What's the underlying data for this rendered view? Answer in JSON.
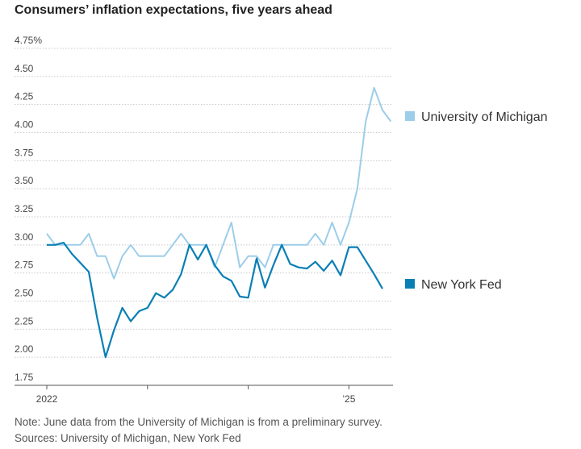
{
  "chart_data": {
    "type": "line",
    "title": "Consumers’ inflation expectations, five years ahead",
    "xlabel": "",
    "ylabel": "",
    "ylim": [
      1.75,
      4.75
    ],
    "y_ticks": [
      1.75,
      2.0,
      2.25,
      2.5,
      2.75,
      3.0,
      3.25,
      3.5,
      3.75,
      4.0,
      4.25,
      4.5,
      4.75
    ],
    "y_tick_labels": [
      "1.75",
      "2.00",
      "2.25",
      "2.50",
      "2.75",
      "3.00",
      "3.25",
      "3.50",
      "3.75",
      "4.00",
      "4.25",
      "4.50",
      "4.75%"
    ],
    "x_start": "2022-01",
    "x_ticks": [
      0,
      12,
      24,
      36
    ],
    "x_tick_labels": [
      "2022",
      "",
      "",
      "’25"
    ],
    "grid": true,
    "legend": "right, next to each line",
    "series": [
      {
        "name": "University of Michigan",
        "color": "#9dcde9",
        "values": [
          3.1,
          3.0,
          3.0,
          3.0,
          3.0,
          3.1,
          2.9,
          2.9,
          2.7,
          2.9,
          3.0,
          2.9,
          2.9,
          2.9,
          2.9,
          3.0,
          3.1,
          3.0,
          3.0,
          3.0,
          2.8,
          3.0,
          3.2,
          2.8,
          2.9,
          2.9,
          2.8,
          3.0,
          3.0,
          3.0,
          3.0,
          3.0,
          3.1,
          3.0,
          3.2,
          3.0,
          3.2,
          3.5,
          4.1,
          4.4,
          4.2,
          4.1
        ]
      },
      {
        "name": "New York Fed",
        "color": "#0a7fb5",
        "values": [
          3.0,
          3.0,
          3.02,
          2.92,
          2.84,
          2.76,
          2.35,
          2.0,
          2.24,
          2.44,
          2.32,
          2.41,
          2.44,
          2.57,
          2.53,
          2.6,
          2.74,
          3.0,
          2.87,
          3.0,
          2.82,
          2.72,
          2.68,
          2.54,
          2.53,
          2.88,
          2.62,
          2.82,
          3.0,
          2.83,
          2.8,
          2.79,
          2.85,
          2.77,
          2.86,
          2.73,
          2.98,
          2.98,
          2.86,
          2.74,
          2.61
        ]
      }
    ]
  },
  "footer": {
    "note": "Note: June data from the University of Michigan is from a preliminary survey.",
    "source": "Sources: University of Michigan, New York Fed"
  }
}
